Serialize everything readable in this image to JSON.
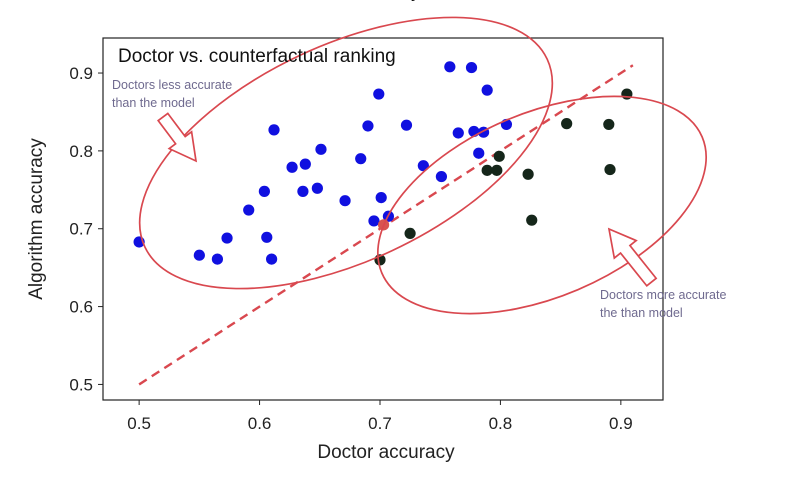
{
  "chart_data": {
    "type": "scatter",
    "title": "Doctor vs. counterfactual ranking",
    "top_cut_text": "y",
    "xlabel": "Doctor accuracy",
    "ylabel": "Algorithm accuracy",
    "xlim": [
      0.47,
      0.935
    ],
    "ylim": [
      0.48,
      0.945
    ],
    "xticks": [
      0.5,
      0.6,
      0.7,
      0.8,
      0.9
    ],
    "xtick_labels": [
      "0.5",
      "0.6",
      "0.7",
      "0.8",
      "0.9"
    ],
    "yticks": [
      0.5,
      0.6,
      0.7,
      0.8,
      0.9
    ],
    "ytick_labels": [
      "0.5",
      "0.6",
      "0.7",
      "0.8",
      "0.9"
    ],
    "grid": false,
    "colors": {
      "less_accurate": "#1010e0",
      "more_accurate": "#15261a",
      "highlight": "#d9534f",
      "annotation": "#d9484f",
      "note_text": "#6f6a8f"
    },
    "series": [
      {
        "color_key": "less_accurate",
        "points": [
          [
            0.5,
            0.683
          ],
          [
            0.55,
            0.666
          ],
          [
            0.565,
            0.661
          ],
          [
            0.573,
            0.688
          ],
          [
            0.591,
            0.724
          ],
          [
            0.604,
            0.748
          ],
          [
            0.606,
            0.689
          ],
          [
            0.61,
            0.661
          ],
          [
            0.612,
            0.827
          ],
          [
            0.627,
            0.779
          ],
          [
            0.636,
            0.748
          ],
          [
            0.638,
            0.783
          ],
          [
            0.648,
            0.752
          ],
          [
            0.651,
            0.802
          ],
          [
            0.671,
            0.736
          ],
          [
            0.684,
            0.79
          ],
          [
            0.69,
            0.832
          ],
          [
            0.695,
            0.71
          ],
          [
            0.699,
            0.873
          ],
          [
            0.701,
            0.74
          ],
          [
            0.707,
            0.716
          ],
          [
            0.722,
            0.833
          ],
          [
            0.736,
            0.781
          ],
          [
            0.751,
            0.767
          ],
          [
            0.758,
            0.908
          ],
          [
            0.765,
            0.823
          ],
          [
            0.776,
            0.907
          ],
          [
            0.778,
            0.825
          ],
          [
            0.782,
            0.797
          ],
          [
            0.786,
            0.824
          ],
          [
            0.789,
            0.878
          ],
          [
            0.805,
            0.834
          ]
        ]
      },
      {
        "color_key": "more_accurate",
        "points": [
          [
            0.7,
            0.66
          ],
          [
            0.725,
            0.694
          ],
          [
            0.789,
            0.775
          ],
          [
            0.797,
            0.775
          ],
          [
            0.799,
            0.793
          ],
          [
            0.823,
            0.77
          ],
          [
            0.826,
            0.711
          ],
          [
            0.855,
            0.835
          ],
          [
            0.89,
            0.834
          ],
          [
            0.891,
            0.776
          ],
          [
            0.905,
            0.873
          ]
        ]
      },
      {
        "color_key": "highlight",
        "points": [
          [
            0.703,
            0.705
          ]
        ]
      }
    ],
    "reference_line": {
      "x": [
        0.5,
        0.91
      ],
      "y": [
        0.5,
        0.91
      ],
      "style": "dashed"
    },
    "annotations": [
      {
        "lines": [
          "Doctors less accurate",
          "than the model"
        ],
        "arrow": "right"
      },
      {
        "lines": [
          "Doctors more accurate",
          "the than model"
        ],
        "arrow": "up-left"
      }
    ]
  }
}
